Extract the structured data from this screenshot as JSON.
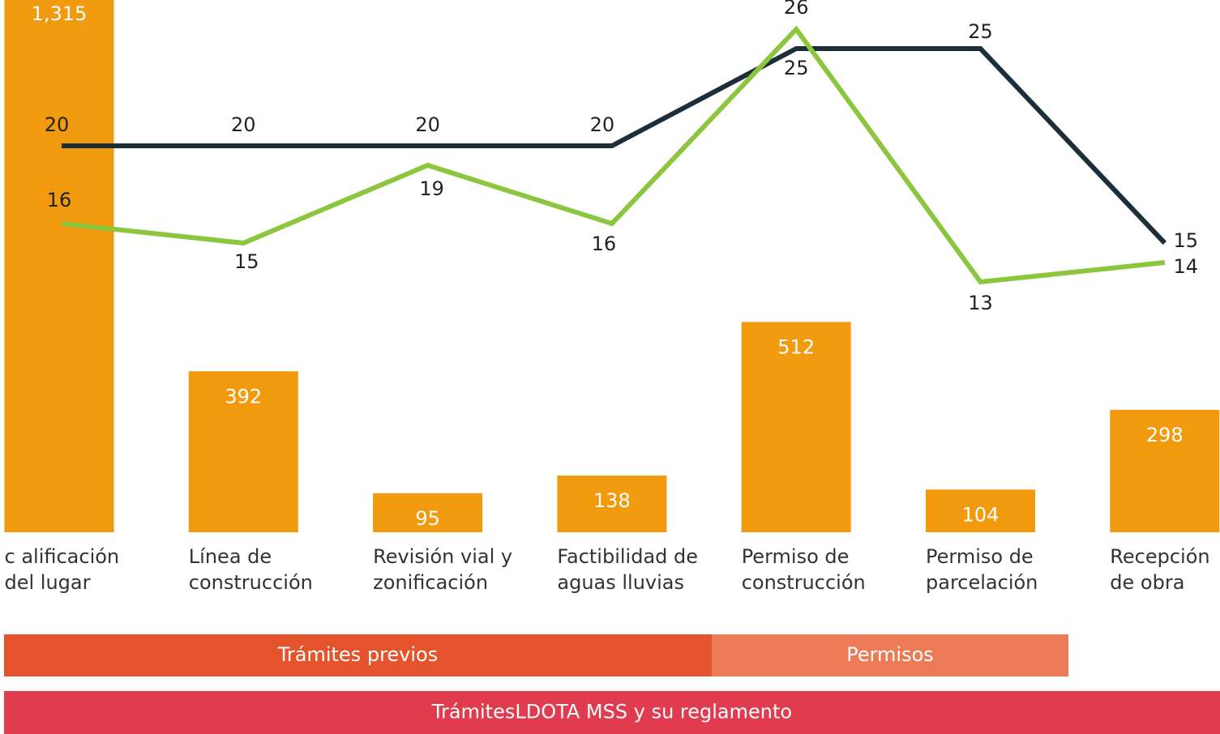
{
  "chart_data": {
    "type": "bar-line",
    "categories": [
      [
        "c alificación",
        "del lugar"
      ],
      [
        "Línea de",
        "construcción"
      ],
      [
        "Revisión vial y",
        "zonificación"
      ],
      [
        "Factibilidad de",
        "aguas lluvias"
      ],
      [
        "Permiso de",
        "construcción"
      ],
      [
        "Permiso de",
        "parcelación"
      ],
      [
        "Recepción",
        "de obra"
      ]
    ],
    "values": [
      1315,
      392,
      95,
      138,
      512,
      104,
      298
    ],
    "value_labels": [
      "1,315",
      "392",
      "95",
      "138",
      "512",
      "104",
      "298"
    ],
    "color": "#f29a0e",
    "series": [
      {
        "color": "#1c2e38",
        "values": [
          20,
          20,
          20,
          20,
          25,
          25,
          15
        ]
      },
      {
        "color": "#8cc63e",
        "values": [
          16,
          15,
          19,
          16,
          26,
          13,
          14
        ]
      }
    ],
    "bands": [
      {
        "label": "Trámites previos",
        "color": "#e4532b"
      },
      {
        "label": "Permisos",
        "color": "#ec7b55"
      },
      {
        "label": "TrámitesLDOTA MSS y su reglamento",
        "color": "#e13b4f"
      }
    ]
  }
}
